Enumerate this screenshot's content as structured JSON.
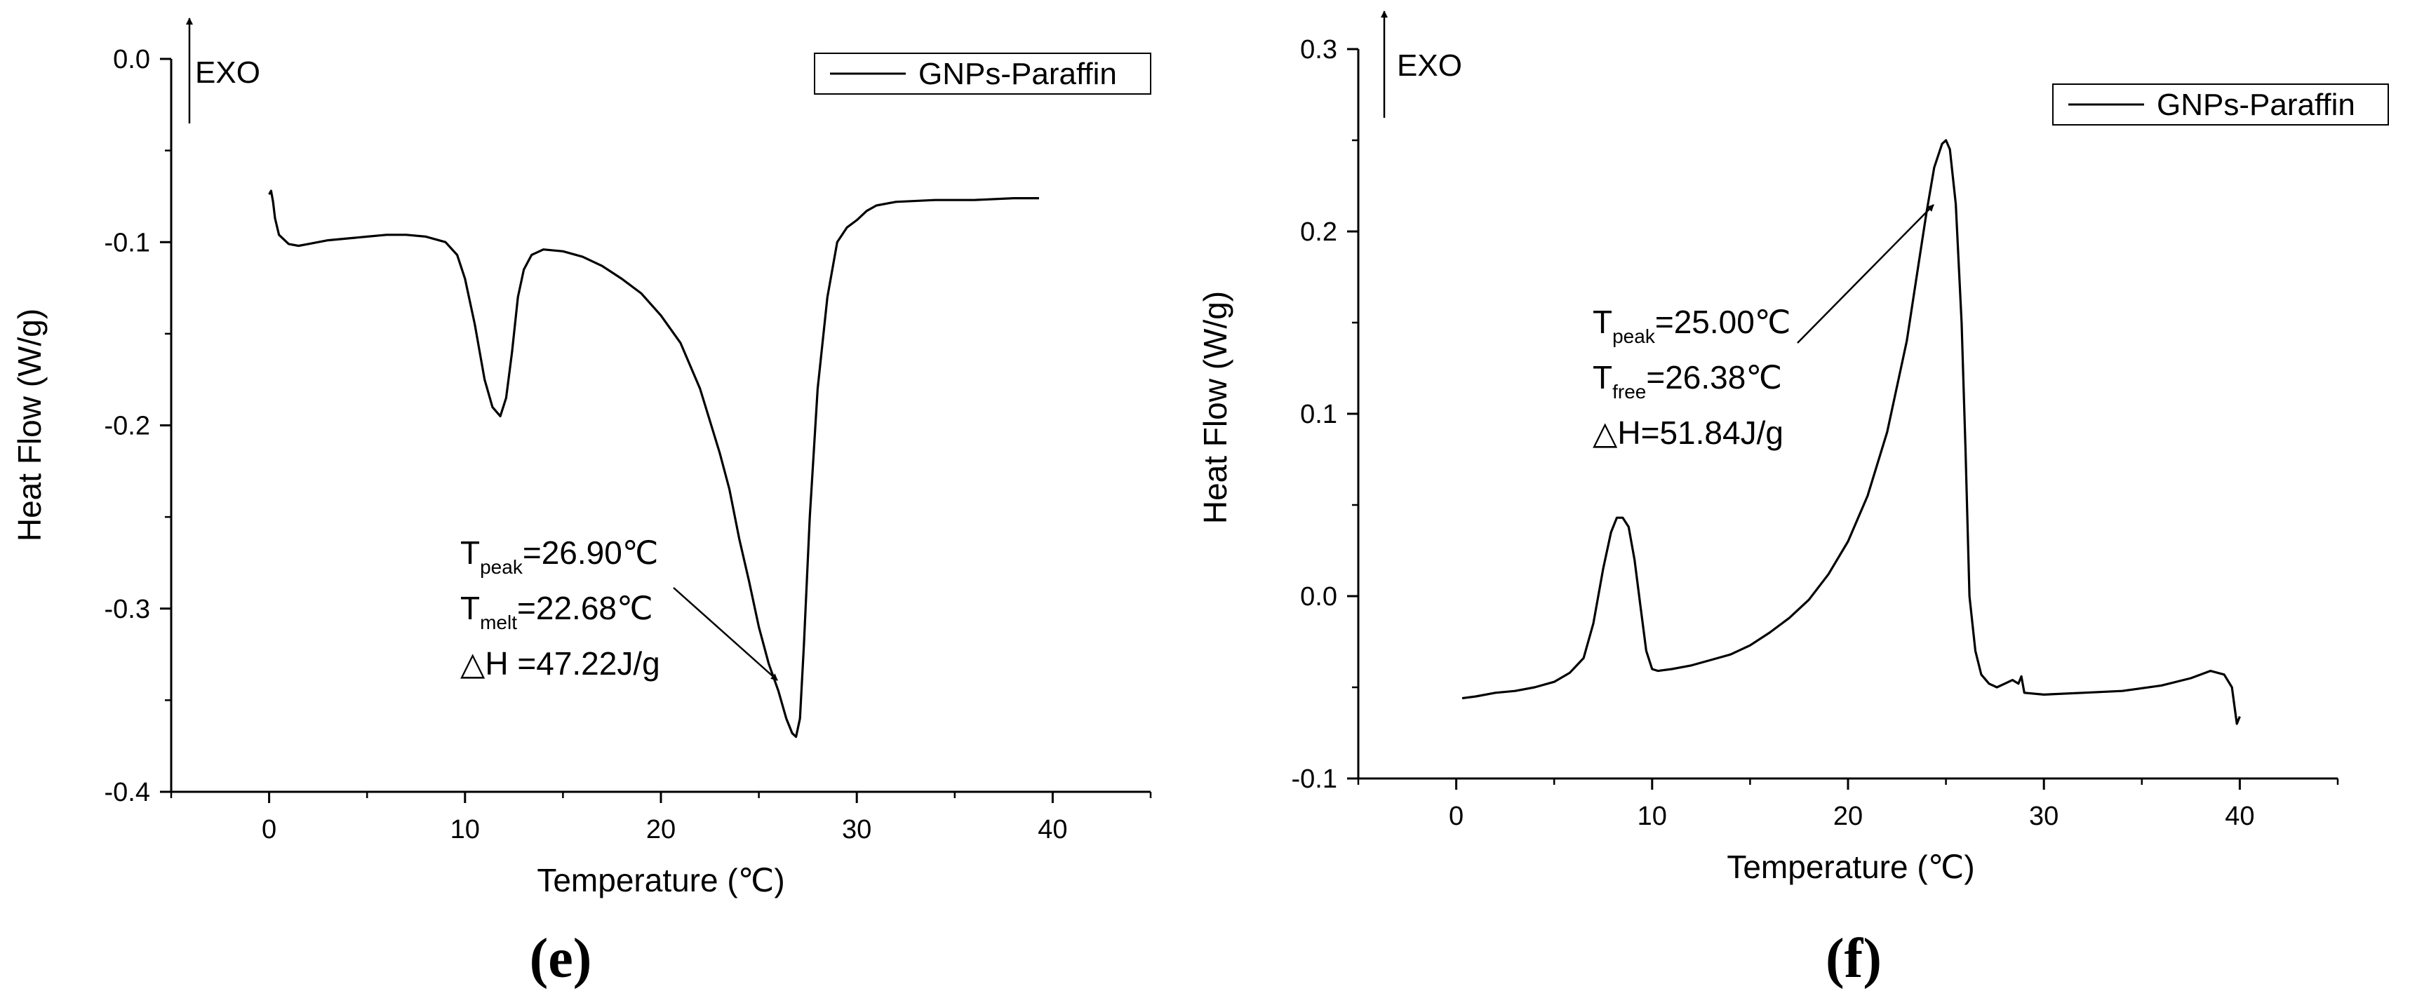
{
  "chart_data": [
    {
      "id": "e",
      "type": "line",
      "panel_label": "(e)",
      "xlabel": "Temperature (℃)",
      "ylabel": "Heat Flow (W/g)",
      "xlim": [
        -5,
        45
      ],
      "ylim": [
        -0.4,
        0.0
      ],
      "xticks": [
        "0",
        "10",
        "20",
        "30",
        "40"
      ],
      "yticks": [
        "0.0",
        "-0.1",
        "-0.2",
        "-0.3",
        "-0.4"
      ],
      "exo_label": "EXO",
      "legend": "GNPs-Paraffin",
      "annotation": {
        "t1_main": "T",
        "t1_sub": "peak",
        "t1_val": "=26.90℃",
        "t2_main": "T",
        "t2_sub": "melt",
        "t2_val": "=22.68℃",
        "dh": "△H =47.22J/g"
      },
      "series": [
        {
          "name": "GNPs-Paraffin",
          "x": [
            0.0,
            0.1,
            0.2,
            0.3,
            0.5,
            1.0,
            1.5,
            2.0,
            3.0,
            4.0,
            5.0,
            6.0,
            7.0,
            8.0,
            9.0,
            9.6,
            10.0,
            10.5,
            11.0,
            11.4,
            11.8,
            12.1,
            12.4,
            12.7,
            13.0,
            13.4,
            14.0,
            15.0,
            16.0,
            17.0,
            18.0,
            19.0,
            20.0,
            21.0,
            22.0,
            23.0,
            23.5,
            24.0,
            24.5,
            25.0,
            25.5,
            26.0,
            26.4,
            26.7,
            26.9,
            27.1,
            27.3,
            27.6,
            28.0,
            28.5,
            29.0,
            29.5,
            30.0,
            30.5,
            31.0,
            32.0,
            34.0,
            36.0,
            38.0,
            39.3
          ],
          "y": [
            -0.074,
            -0.072,
            -0.078,
            -0.087,
            -0.096,
            -0.101,
            -0.102,
            -0.101,
            -0.099,
            -0.098,
            -0.097,
            -0.096,
            -0.096,
            -0.097,
            -0.1,
            -0.107,
            -0.12,
            -0.145,
            -0.175,
            -0.19,
            -0.195,
            -0.185,
            -0.16,
            -0.13,
            -0.115,
            -0.107,
            -0.104,
            -0.105,
            -0.108,
            -0.113,
            -0.12,
            -0.128,
            -0.14,
            -0.155,
            -0.18,
            -0.215,
            -0.235,
            -0.262,
            -0.285,
            -0.31,
            -0.33,
            -0.345,
            -0.36,
            -0.368,
            -0.37,
            -0.36,
            -0.32,
            -0.25,
            -0.18,
            -0.13,
            -0.1,
            -0.092,
            -0.088,
            -0.083,
            -0.08,
            -0.078,
            -0.077,
            -0.077,
            -0.076,
            -0.076
          ]
        }
      ]
    },
    {
      "id": "f",
      "type": "line",
      "panel_label": "(f)",
      "xlabel": "Temperature (℃)",
      "ylabel": "Heat Flow (W/g)",
      "xlim": [
        -5,
        45
      ],
      "ylim": [
        -0.1,
        0.3
      ],
      "xticks": [
        "0",
        "10",
        "20",
        "30",
        "40"
      ],
      "yticks": [
        "-0.1",
        "0.0",
        "0.1",
        "0.2",
        "0.3"
      ],
      "exo_label": "EXO",
      "legend": "GNPs-Paraffin",
      "annotation": {
        "t1_main": "T",
        "t1_sub": "peak",
        "t1_val": "=25.00℃",
        "t2_main": "T",
        "t2_sub": "free",
        "t2_val": "=26.38℃",
        "dh": "△H=51.84J/g"
      },
      "series": [
        {
          "name": "GNPs-Paraffin",
          "x": [
            0.3,
            1.0,
            2.0,
            3.0,
            4.0,
            5.0,
            5.8,
            6.5,
            7.0,
            7.5,
            7.9,
            8.2,
            8.5,
            8.8,
            9.1,
            9.4,
            9.7,
            10.0,
            10.3,
            11.0,
            12.0,
            13.0,
            14.0,
            15.0,
            16.0,
            17.0,
            18.0,
            19.0,
            20.0,
            21.0,
            22.0,
            23.0,
            23.5,
            24.0,
            24.4,
            24.8,
            25.0,
            25.2,
            25.5,
            25.8,
            26.0,
            26.2,
            26.5,
            26.8,
            27.2,
            27.6,
            28.0,
            28.4,
            28.7,
            28.85,
            29.0,
            30.0,
            32.0,
            34.0,
            36.0,
            37.5,
            38.5,
            39.2,
            39.6,
            39.85,
            40.0
          ],
          "y": [
            -0.056,
            -0.055,
            -0.053,
            -0.052,
            -0.05,
            -0.047,
            -0.042,
            -0.034,
            -0.015,
            0.015,
            0.035,
            0.043,
            0.043,
            0.038,
            0.02,
            -0.005,
            -0.03,
            -0.04,
            -0.041,
            -0.04,
            -0.038,
            -0.035,
            -0.032,
            -0.027,
            -0.02,
            -0.012,
            -0.002,
            0.012,
            0.03,
            0.055,
            0.09,
            0.14,
            0.175,
            0.21,
            0.235,
            0.248,
            0.25,
            0.245,
            0.215,
            0.15,
            0.08,
            0.0,
            -0.03,
            -0.043,
            -0.048,
            -0.05,
            -0.048,
            -0.046,
            -0.048,
            -0.044,
            -0.053,
            -0.054,
            -0.053,
            -0.052,
            -0.049,
            -0.045,
            -0.041,
            -0.043,
            -0.05,
            -0.07,
            -0.066
          ]
        }
      ]
    }
  ]
}
